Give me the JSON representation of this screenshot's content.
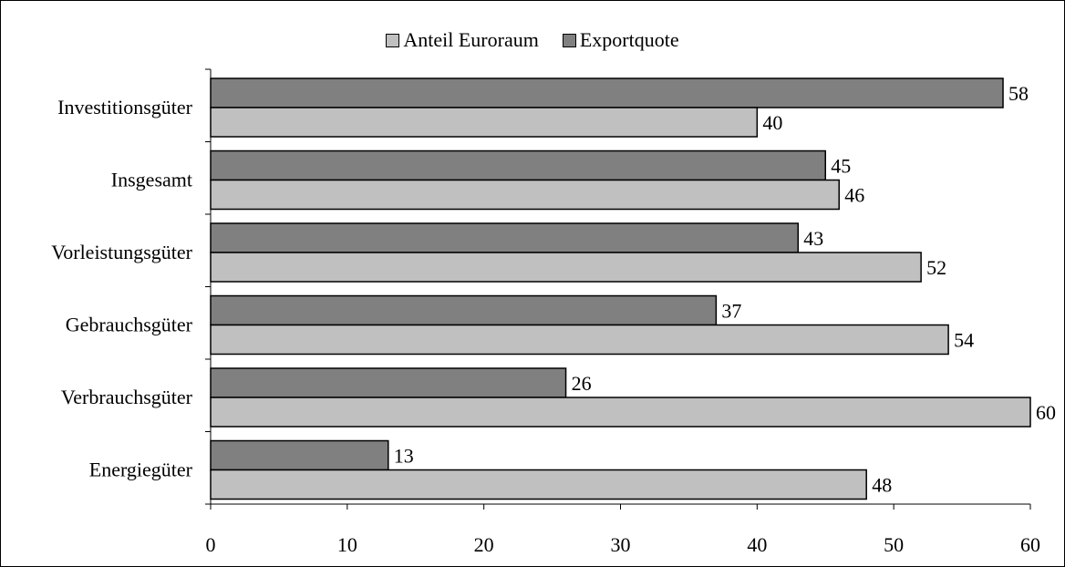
{
  "chart_data": {
    "type": "bar",
    "orientation": "horizontal",
    "categories": [
      "Investitionsgüter",
      "Insgesamt",
      "Vorleistungsgüter",
      "Gebrauchsgüter",
      "Verbrauchsgüter",
      "Energiegüter"
    ],
    "series": [
      {
        "name": "Exportquote",
        "values": [
          58,
          45,
          43,
          37,
          26,
          13
        ],
        "color": "#808080"
      },
      {
        "name": "Anteil Euroraum",
        "values": [
          40,
          46,
          52,
          54,
          60,
          48
        ],
        "color": "#c0c0c0"
      }
    ],
    "legend_order": [
      "Anteil Euroraum",
      "Exportquote"
    ],
    "xlim": [
      0,
      60
    ],
    "xticks": [
      0,
      10,
      20,
      30,
      40,
      50,
      60
    ],
    "grid": false,
    "legend_position": "top"
  }
}
